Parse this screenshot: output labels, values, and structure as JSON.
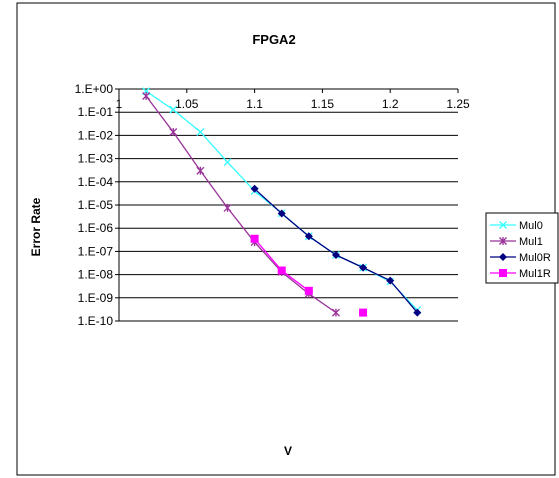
{
  "chart_data": {
    "type": "line",
    "title": "FPGA2",
    "xlabel": "V",
    "ylabel": "Error Rate",
    "x_ticks": [
      "1",
      "1.05",
      "1.1",
      "1.15",
      "1.2",
      "1.25"
    ],
    "x_tick_values": [
      1,
      1.05,
      1.1,
      1.15,
      1.2,
      1.25
    ],
    "y_ticks": [
      "1.E+00",
      "1.E-01",
      "1.E-02",
      "1.E-03",
      "1.E-04",
      "1.E-05",
      "1.E-06",
      "1.E-07",
      "1.E-08",
      "1.E-09",
      "1.E-10"
    ],
    "y_tick_exponents": [
      0,
      -1,
      -2,
      -3,
      -4,
      -5,
      -6,
      -7,
      -8,
      -9,
      -10
    ],
    "xlim": [
      1,
      1.25
    ],
    "ylim": [
      1e-10,
      1
    ],
    "y_scale": "log",
    "grid": "horizontal",
    "legend_position": "right",
    "series": [
      {
        "name": "Mul0",
        "color": "#33ffff",
        "marker": "x",
        "x": [
          1.02,
          1.04,
          1.06,
          1.08,
          1.1,
          1.12,
          1.14,
          1.16,
          1.18,
          1.2,
          1.22
        ],
        "y": [
          0.8,
          0.13,
          0.014,
          0.0007,
          4e-05,
          4.4e-06,
          4.5e-07,
          7e-08,
          2e-08,
          5e-09,
          3e-10
        ]
      },
      {
        "name": "Mul1",
        "color": "#993399",
        "marker": "asterisk",
        "x": [
          1.02,
          1.04,
          1.06,
          1.08,
          1.1,
          1.12,
          1.14,
          1.16
        ],
        "y": [
          0.5,
          0.014,
          0.0003,
          7.5e-06,
          2.5e-07,
          1.3e-08,
          1.5e-09,
          2.3e-10
        ]
      },
      {
        "name": "Mul0R",
        "color": "#000080",
        "marker": "diamond",
        "x": [
          1.1,
          1.12,
          1.14,
          1.16,
          1.18,
          1.2,
          1.22
        ],
        "y": [
          5e-05,
          4.3e-06,
          4.5e-07,
          7e-08,
          2e-08,
          5.5e-09,
          2.3e-10
        ]
      },
      {
        "name": "Mul1R",
        "color": "#ff00ff",
        "marker": "square",
        "x": [
          1.1,
          1.12,
          1.14,
          1.18
        ],
        "y": [
          3.5e-07,
          1.5e-08,
          2e-09,
          2.3e-10
        ],
        "segments": [
          [
            0,
            1,
            2
          ]
        ]
      }
    ]
  }
}
